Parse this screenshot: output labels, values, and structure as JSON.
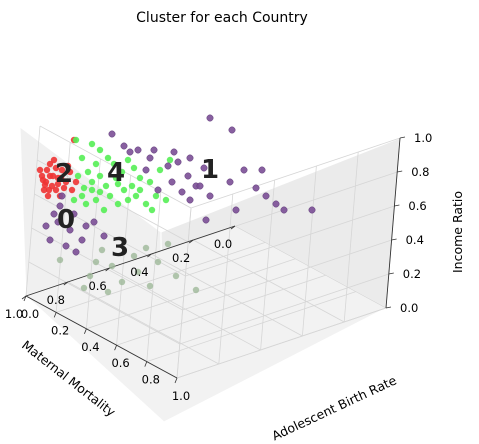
{
  "chart_data": {
    "type": "scatter",
    "projection": "3d",
    "title": "Cluster for each Country",
    "xlabel": "Maternal Mortality",
    "ylabel": "Adolescent Birth Rate",
    "zlabel": "Income Ratio",
    "xlim": [
      0,
      1
    ],
    "ylim": [
      0,
      1
    ],
    "zlim": [
      0,
      1
    ],
    "x_ticks": [
      "0.0",
      "0.2",
      "0.4",
      "0.6",
      "0.8",
      "1.0"
    ],
    "y_ticks": [
      "0.0",
      "0.2",
      "0.4",
      "0.6",
      "0.8",
      "1.0"
    ],
    "z_ticks": [
      "0.0",
      "0.2",
      "0.4",
      "0.6",
      "0.8",
      "1.0"
    ],
    "grid": true,
    "series": [
      {
        "cluster": "0",
        "color": "#7b4f96"
      },
      {
        "cluster": "1",
        "color": "#7b4f96"
      },
      {
        "cluster": "2",
        "color": "#ee3333"
      },
      {
        "cluster": "3",
        "color": "#9eb898"
      },
      {
        "cluster": "4",
        "color": "#55ee55"
      }
    ],
    "cluster_labels": [
      "0",
      "1",
      "2",
      "3",
      "4"
    ]
  }
}
